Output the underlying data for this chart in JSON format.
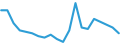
{
  "y": [
    0.9,
    0.9,
    0.0,
    -0.5,
    -0.6,
    -0.7,
    -0.9,
    -1.0,
    -0.8,
    -1.1,
    -1.3,
    -0.5,
    1.4,
    -0.3,
    -0.4,
    0.3,
    0.1,
    -0.1,
    -0.3,
    -0.7
  ],
  "line_color": "#2E9ED6",
  "line_width": 1.5,
  "background_color": "#ffffff"
}
